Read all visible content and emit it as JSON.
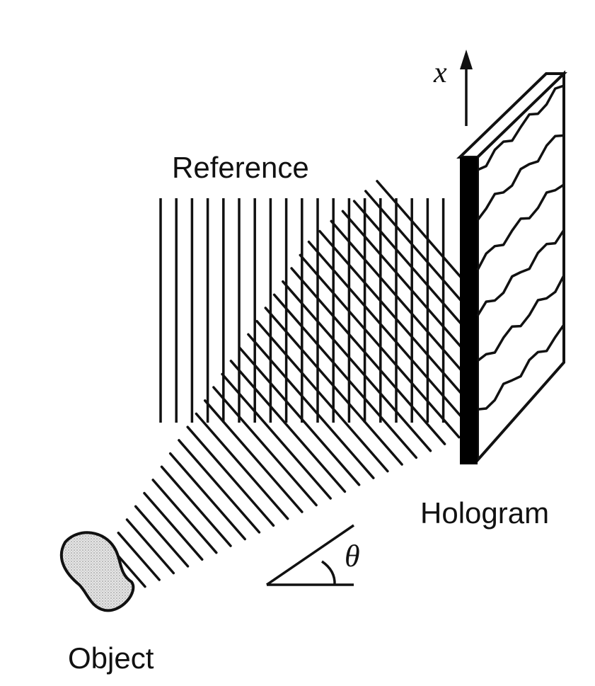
{
  "labels": {
    "reference": "Reference",
    "hologram": "Hologram",
    "object": "Object",
    "axis": "x",
    "angle": "θ"
  },
  "colors": {
    "ink": "#111111",
    "plate_edge": "#000000",
    "object_fill": "#d9d9d9",
    "background": "#ffffff"
  },
  "icons": {
    "axis_arrow": "arrow-up-icon",
    "angle_marker": "angle-icon"
  }
}
